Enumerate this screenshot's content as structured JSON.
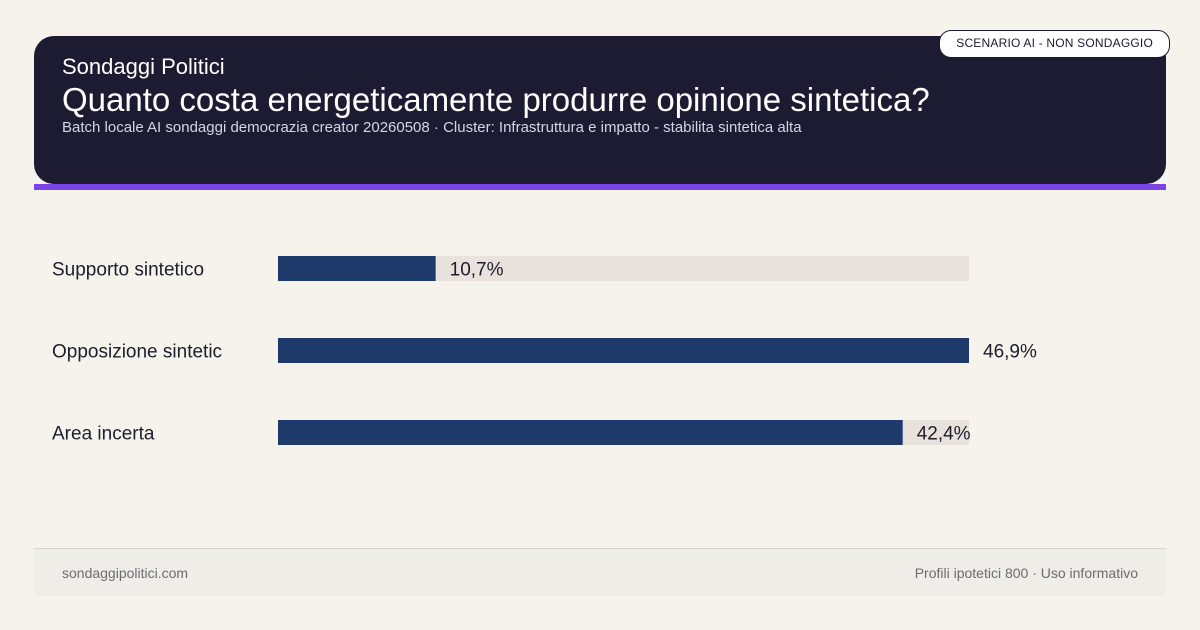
{
  "header": {
    "brand": "Sondaggi Politici",
    "title": "Quanto costa energeticamente produrre opinione sintetica?",
    "subtitle": "Batch locale AI sondaggi democrazia creator 20260508 · Cluster: Infrastruttura e impatto - stabilita sintetica alta",
    "badge": "SCENARIO AI - NON SONDAGGIO"
  },
  "chart_data": {
    "type": "bar",
    "orientation": "horizontal",
    "categories": [
      "Supporto sintetico",
      "Opposizione sintetic",
      "Area incerta"
    ],
    "values": [
      10.7,
      46.9,
      42.4
    ],
    "value_labels": [
      "10,7%",
      "46,9%",
      "42,4%"
    ],
    "xlim": [
      0,
      46.9
    ],
    "grid": false,
    "colors": {
      "bar": "#1e3a6b",
      "track": "#e9e2dc"
    }
  },
  "footer": {
    "left": "sondaggipolitici.com",
    "right": "Profili ipotetici 800 · Uso informativo"
  }
}
